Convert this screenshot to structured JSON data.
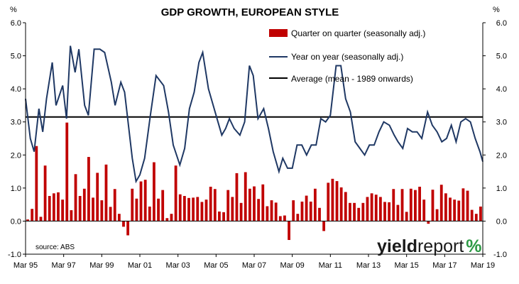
{
  "chart_data": {
    "type": "bar+line",
    "title": "GDP GROWTH, EUROPEAN STYLE",
    "y_unit_left": "%",
    "y_unit_right": "%",
    "ylim": [
      -1.0,
      6.0
    ],
    "y_ticks": [
      "6.0",
      "5.0",
      "4.0",
      "3.0",
      "2.0",
      "1.0",
      "0.0",
      "-1.0"
    ],
    "x_tick_labels": [
      "Mar 95",
      "Mar 97",
      "Mar 99",
      "Mar 01",
      "Mar 03",
      "Mar 05",
      "Mar 07",
      "Mar 09",
      "Mar 11",
      "Mar 13",
      "Mar 15",
      "Mar 17",
      "Mar 19"
    ],
    "x_start_year": 1995,
    "x_end_year": 2019,
    "grid": false,
    "legend_position": "top-right",
    "series": [
      {
        "name": "Quarter on quarter (seasonally adj.)",
        "type": "bar",
        "color": "#c00000",
        "values": [
          0.05,
          0.37,
          2.27,
          0.13,
          1.68,
          0.76,
          0.84,
          0.87,
          0.65,
          2.98,
          0.33,
          1.42,
          0.76,
          0.98,
          1.94,
          0.71,
          1.46,
          0.63,
          1.71,
          0.43,
          0.97,
          0.22,
          -0.17,
          -0.43,
          0.98,
          0.68,
          1.2,
          1.25,
          0.44,
          1.78,
          0.68,
          0.94,
          0.09,
          0.22,
          1.68,
          0.81,
          0.76,
          0.7,
          0.71,
          0.73,
          0.58,
          0.65,
          1.04,
          0.97,
          0.29,
          0.27,
          0.94,
          0.73,
          1.45,
          0.55,
          1.48,
          0.98,
          1.05,
          0.67,
          1.11,
          0.45,
          0.63,
          0.56,
          0.15,
          0.17,
          -0.57,
          0.63,
          0.22,
          0.59,
          0.77,
          0.59,
          0.98,
          0.4,
          -0.3,
          1.16,
          1.28,
          1.21,
          1.02,
          0.88,
          0.55,
          0.55,
          0.4,
          0.55,
          0.73,
          0.84,
          0.8,
          0.73,
          0.58,
          0.57,
          0.97,
          0.49,
          0.97,
          0.28,
          0.98,
          0.94,
          1.04,
          0.65,
          -0.08,
          0.95,
          0.36,
          1.1,
          0.84,
          0.71,
          0.65,
          0.62,
          0.99,
          0.92,
          0.34,
          0.22,
          0.44
        ]
      },
      {
        "name": "Year on year (seasonally adj.)",
        "type": "line",
        "color": "#1f3864",
        "points": [
          [
            1995.0,
            3.7
          ],
          [
            1995.25,
            2.5
          ],
          [
            1995.45,
            2.1
          ],
          [
            1995.7,
            3.4
          ],
          [
            1995.9,
            2.7
          ],
          [
            1996.1,
            3.7
          ],
          [
            1996.4,
            4.8
          ],
          [
            1996.6,
            3.5
          ],
          [
            1996.95,
            4.1
          ],
          [
            1997.15,
            3.1
          ],
          [
            1997.35,
            5.3
          ],
          [
            1997.6,
            4.5
          ],
          [
            1997.8,
            5.2
          ],
          [
            1998.1,
            3.5
          ],
          [
            1998.3,
            3.2
          ],
          [
            1998.6,
            5.2
          ],
          [
            1998.9,
            5.2
          ],
          [
            1999.15,
            5.1
          ],
          [
            1999.5,
            4.2
          ],
          [
            1999.7,
            3.5
          ],
          [
            2000.0,
            4.2
          ],
          [
            2000.2,
            3.9
          ],
          [
            2000.6,
            1.9
          ],
          [
            2000.8,
            1.2
          ],
          [
            2001.0,
            1.4
          ],
          [
            2001.25,
            1.9
          ],
          [
            2001.55,
            3.2
          ],
          [
            2001.85,
            4.4
          ],
          [
            2002.25,
            4.1
          ],
          [
            2002.5,
            3.3
          ],
          [
            2002.75,
            2.3
          ],
          [
            2003.1,
            1.7
          ],
          [
            2003.35,
            2.2
          ],
          [
            2003.6,
            3.4
          ],
          [
            2003.85,
            3.9
          ],
          [
            2004.1,
            4.8
          ],
          [
            2004.3,
            5.1
          ],
          [
            2004.6,
            4.0
          ],
          [
            2004.85,
            3.5
          ],
          [
            2005.1,
            3.0
          ],
          [
            2005.3,
            2.6
          ],
          [
            2005.5,
            2.8
          ],
          [
            2005.7,
            3.1
          ],
          [
            2005.95,
            2.8
          ],
          [
            2006.25,
            2.6
          ],
          [
            2006.5,
            3.0
          ],
          [
            2006.75,
            4.7
          ],
          [
            2006.95,
            4.4
          ],
          [
            2007.2,
            3.1
          ],
          [
            2007.5,
            3.4
          ],
          [
            2007.75,
            2.8
          ],
          [
            2008.0,
            2.1
          ],
          [
            2008.3,
            1.5
          ],
          [
            2008.5,
            1.9
          ],
          [
            2008.75,
            1.6
          ],
          [
            2009.0,
            1.6
          ],
          [
            2009.25,
            2.3
          ],
          [
            2009.5,
            2.3
          ],
          [
            2009.75,
            2.0
          ],
          [
            2010.0,
            2.3
          ],
          [
            2010.25,
            2.3
          ],
          [
            2010.5,
            3.1
          ],
          [
            2010.75,
            3.0
          ],
          [
            2011.0,
            3.2
          ],
          [
            2011.3,
            4.7
          ],
          [
            2011.55,
            4.7
          ],
          [
            2011.8,
            3.7
          ],
          [
            2012.05,
            3.3
          ],
          [
            2012.3,
            2.4
          ],
          [
            2012.55,
            2.2
          ],
          [
            2012.8,
            2.0
          ],
          [
            2013.05,
            2.3
          ],
          [
            2013.3,
            2.3
          ],
          [
            2013.55,
            2.7
          ],
          [
            2013.8,
            3.0
          ],
          [
            2014.1,
            2.9
          ],
          [
            2014.35,
            2.6
          ],
          [
            2014.55,
            2.4
          ],
          [
            2014.8,
            2.2
          ],
          [
            2015.05,
            2.8
          ],
          [
            2015.3,
            2.7
          ],
          [
            2015.55,
            2.7
          ],
          [
            2015.8,
            2.5
          ],
          [
            2016.1,
            3.3
          ],
          [
            2016.35,
            2.9
          ],
          [
            2016.6,
            2.7
          ],
          [
            2016.85,
            2.4
          ],
          [
            2017.1,
            2.5
          ],
          [
            2017.35,
            2.9
          ],
          [
            2017.6,
            2.4
          ],
          [
            2017.85,
            3.0
          ],
          [
            2018.1,
            3.1
          ],
          [
            2018.35,
            3.0
          ],
          [
            2018.6,
            2.5
          ],
          [
            2018.85,
            2.1
          ],
          [
            2019.0,
            1.8
          ]
        ]
      },
      {
        "name": "Average (mean - 1989 onwards)",
        "type": "hline",
        "color": "#000000",
        "value": 3.15
      }
    ],
    "annotations": {
      "source": "source: ABS",
      "brand": {
        "part1": "yield",
        "part2": "report",
        "part3": "%"
      }
    }
  }
}
